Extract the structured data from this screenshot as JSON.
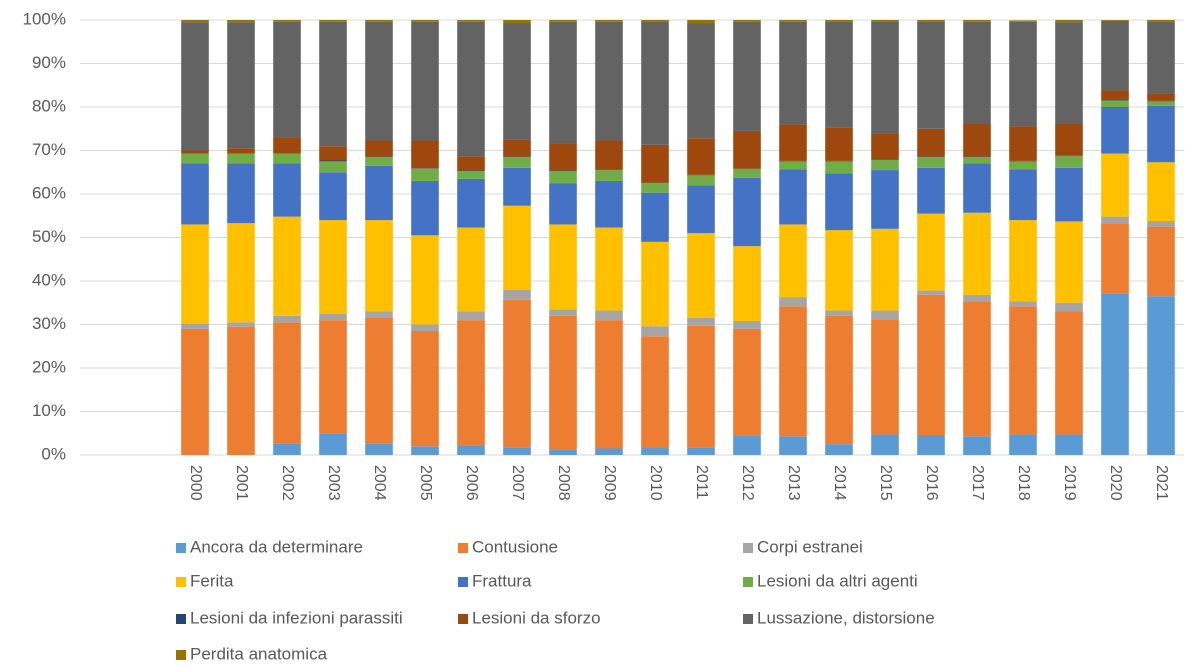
{
  "chart_data": {
    "type": "stacked_bar",
    "categories": [
      null,
      null,
      "2000",
      "2001",
      "2002",
      "2003",
      "2004",
      "2005",
      "2006",
      "2007",
      "2008",
      "2009",
      "2010",
      "2011",
      "2012",
      "2013",
      "2014",
      "2015",
      "2016",
      "2017",
      "2018",
      "2019",
      "2020",
      "2021"
    ],
    "ylim": [
      0,
      100
    ],
    "yticks": [
      {
        "value": 0,
        "label": "0%"
      },
      {
        "value": 10,
        "label": "10%"
      },
      {
        "value": 20,
        "label": "20%"
      },
      {
        "value": 30,
        "label": "30%"
      },
      {
        "value": 40,
        "label": "40%"
      },
      {
        "value": 50,
        "label": "50%"
      },
      {
        "value": 60,
        "label": "60%"
      },
      {
        "value": 70,
        "label": "70%"
      },
      {
        "value": 80,
        "label": "80%"
      },
      {
        "value": 90,
        "label": "90%"
      },
      {
        "value": 100,
        "label": "100%"
      }
    ],
    "grid": true,
    "legend": "bottom",
    "series": [
      {
        "name": "Ancora da determinare",
        "color": "#5b9bd5",
        "values": [
          null,
          null,
          0,
          0,
          2.7,
          5,
          2.6,
          2,
          2.2,
          1.7,
          1.3,
          1.5,
          1.6,
          1.7,
          4.5,
          4.3,
          2.5,
          4.7,
          4.6,
          4.3,
          4.7,
          4.7,
          37.2,
          36.5
        ]
      },
      {
        "name": "Contusione",
        "color": "#ed7d31",
        "values": [
          null,
          null,
          29,
          29.5,
          27.8,
          26,
          28.9,
          26.5,
          28.8,
          34,
          30.7,
          29.5,
          25.7,
          28,
          24.5,
          29.9,
          29.5,
          26.5,
          32.2,
          31,
          29.5,
          28.3,
          16.1,
          16
        ]
      },
      {
        "name": "Corpi estranei",
        "color": "#a5a5a5",
        "values": [
          null,
          null,
          1.2,
          1,
          1.5,
          1.5,
          1.5,
          1.5,
          2,
          2.3,
          1.5,
          2.2,
          2.3,
          1.8,
          1.8,
          2.1,
          1.2,
          2,
          1,
          1.5,
          1.1,
          2,
          1.5,
          1.3
        ]
      },
      {
        "name": "Ferita",
        "color": "#ffc000",
        "values": [
          null,
          null,
          22.8,
          22.8,
          22.8,
          21.5,
          21,
          20.5,
          19.3,
          19.3,
          19.5,
          19.1,
          19.4,
          19.5,
          17.2,
          16.7,
          18.5,
          18.8,
          17.7,
          18.9,
          18.7,
          18.7,
          14.5,
          13.5
        ]
      },
      {
        "name": "Frattura",
        "color": "#4472c4",
        "values": [
          null,
          null,
          14,
          13.7,
          12.2,
          11,
          12.5,
          12.5,
          11.2,
          8.7,
          9.5,
          10.7,
          11.3,
          11,
          15.7,
          12.7,
          13,
          13.5,
          10.5,
          11.3,
          11.7,
          12.3,
          10.7,
          13
        ]
      },
      {
        "name": "Lesioni da altri agenti",
        "color": "#70ad47",
        "values": [
          null,
          null,
          2.3,
          2.3,
          2.3,
          2.5,
          2,
          2.8,
          1.8,
          2.5,
          2.8,
          2.5,
          2.2,
          2.3,
          2,
          1.8,
          2.8,
          2.3,
          2.5,
          1.5,
          1.8,
          2.7,
          1.5,
          1
        ]
      },
      {
        "name": "Lesioni da infezioni parassiti",
        "color": "#264478",
        "values": [
          null,
          null,
          0.1,
          0.1,
          0.1,
          0.2,
          0.1,
          0.1,
          0.1,
          0.1,
          0.1,
          0.1,
          0.1,
          0.1,
          0.1,
          0.1,
          0.1,
          0.1,
          0.1,
          0.1,
          0.1,
          0.1,
          0.1,
          0.1
        ]
      },
      {
        "name": "Lesioni da sforzo",
        "color": "#9e480e",
        "values": [
          null,
          null,
          0.6,
          1.1,
          3.6,
          3.3,
          3.7,
          6.4,
          3.3,
          3.9,
          6.1,
          6.7,
          8.7,
          8.4,
          8.7,
          8.4,
          7.6,
          5.9,
          6.4,
          7.6,
          7.9,
          7.4,
          2.2,
          1.6
        ]
      },
      {
        "name": "Lussazione, distorsione",
        "color": "#636363",
        "values": [
          null,
          null,
          29.5,
          29,
          26.6,
          28.6,
          27.3,
          27.3,
          30.9,
          26.8,
          28.1,
          27.3,
          28.4,
          26.5,
          25.1,
          23.6,
          24.5,
          25.9,
          24.7,
          23.4,
          24.1,
          23.3,
          16,
          16.7
        ]
      },
      {
        "name": "Perdita anatomica",
        "color": "#997300",
        "values": [
          null,
          null,
          0.5,
          0.5,
          0.4,
          0.4,
          0.4,
          0.4,
          0.4,
          0.7,
          0.4,
          0.4,
          0.3,
          0.7,
          0.4,
          0.4,
          0.3,
          0.3,
          0.3,
          0.4,
          0.3,
          0.5,
          0.2,
          0.3
        ]
      }
    ]
  }
}
